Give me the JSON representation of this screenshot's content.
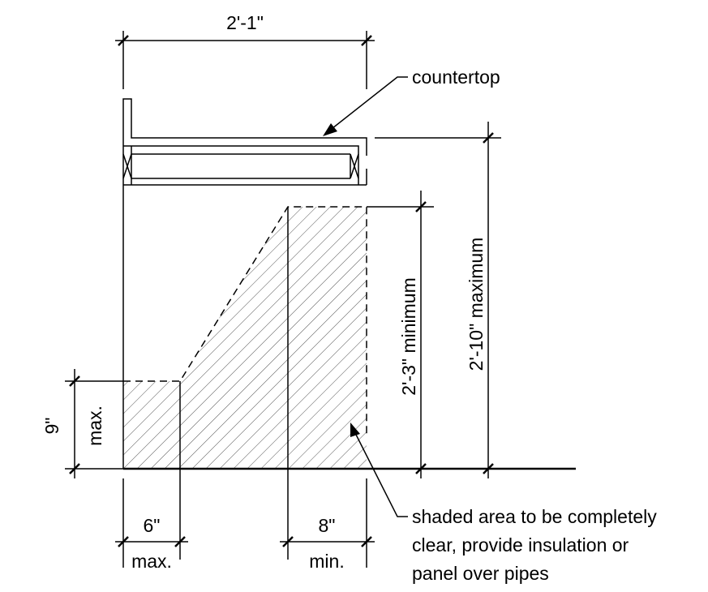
{
  "dimensions": {
    "overall_width": "2'-1\"",
    "max_height": "2'-10\" maximum",
    "min_clearance": "2'-3\" minimum",
    "toe_height": "9\"",
    "toe_height_note": "max.",
    "toe_depth": "6\"",
    "toe_depth_note": "max.",
    "knee_depth": "8\"",
    "knee_depth_note": "min."
  },
  "labels": {
    "countertop": "countertop",
    "shaded_area": [
      "shaded area to be completely",
      "clear, provide insulation or",
      "panel over pipes"
    ]
  }
}
